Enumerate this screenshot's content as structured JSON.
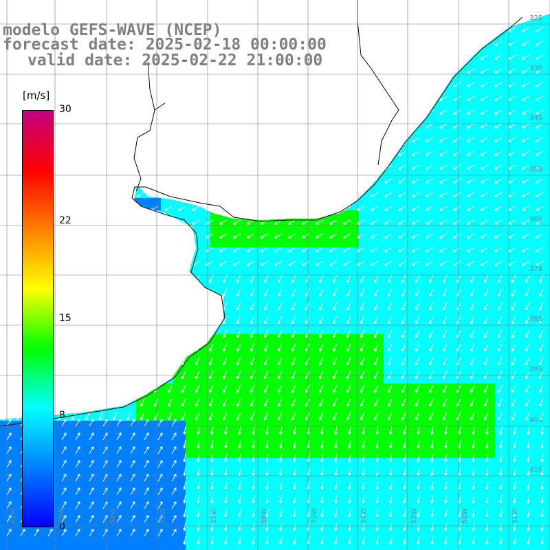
{
  "title": {
    "line1": "modelo GEFS-WAVE (NCEP)",
    "line2": "forecast date: 2025-02-18 00:00:00",
    "line3": "valid date: 2025-02-22 21:00:00"
  },
  "colorbar": {
    "unit": "[m/s]",
    "range": [
      0,
      30
    ],
    "ticks": [
      {
        "label": "30",
        "value": 30
      },
      {
        "label": "22",
        "value": 22
      },
      {
        "label": "15",
        "value": 15
      },
      {
        "label": "8",
        "value": 8
      },
      {
        "label": "0",
        "value": 0
      }
    ],
    "colors": [
      "#0000ff",
      "#0080ff",
      "#00ffff",
      "#00ff00",
      "#ffff00",
      "#ff8000",
      "#ff0000",
      "#c00080"
    ]
  },
  "map": {
    "land_color": "#ffffff",
    "grid_color": "#777777",
    "coastline_color": "#000000",
    "vector_color": "#ffffff",
    "lon_labels": [
      "61W",
      "60W",
      "59W",
      "58W",
      "57W",
      "56W",
      "55W",
      "54W",
      "53W",
      "52W",
      "51W",
      "50W"
    ],
    "lat_labels": [
      "32S",
      "33S",
      "34S",
      "35S",
      "36S",
      "37S",
      "38S",
      "39S",
      "40S",
      "41S"
    ]
  }
}
